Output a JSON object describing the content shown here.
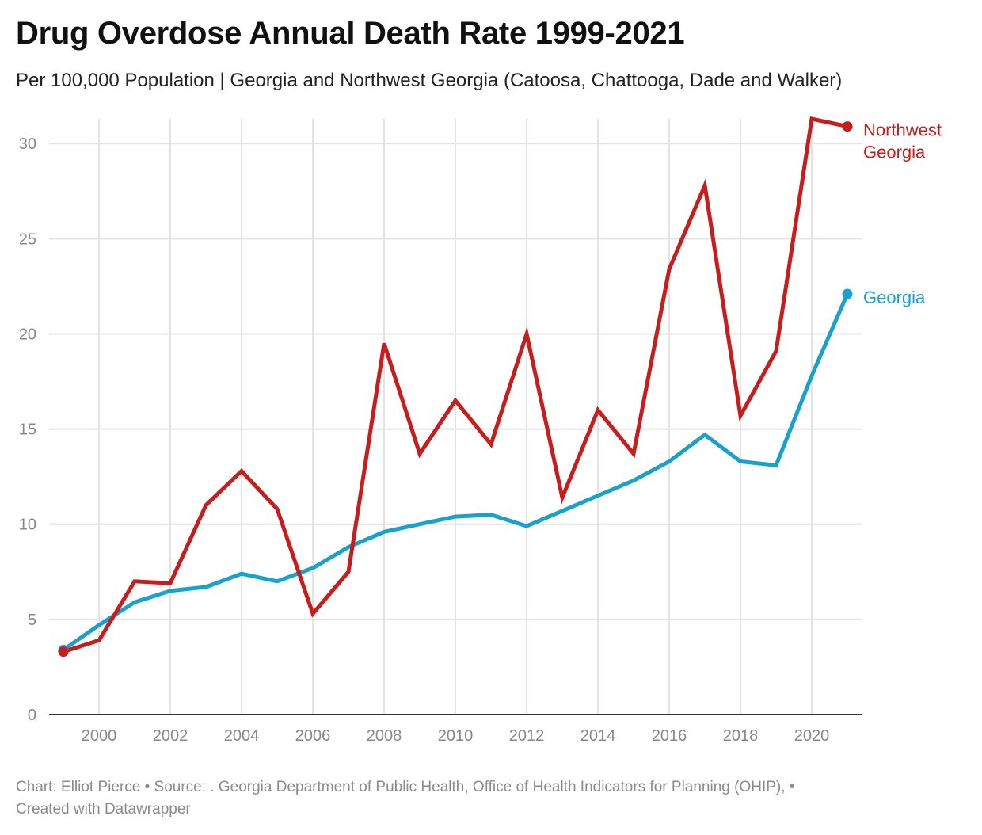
{
  "title": "Drug Overdose Annual Death Rate 1999-2021",
  "subtitle": "Per 100,000 Population | Georgia and Northwest Georgia (Catoosa, Chattooga, Dade and Walker)",
  "footer": {
    "line1": "Chart: Elliot Pierce • Source: . Georgia Department of Public Health, Office of Health Indicators for Planning (OHIP), •",
    "line2": "Created with Datawrapper"
  },
  "chart_data": {
    "type": "line",
    "title": "Drug Overdose Annual Death Rate 1999-2021",
    "subtitle": "Per 100,000 Population | Georgia and Northwest Georgia (Catoosa, Chattooga, Dade and Walker)",
    "x": [
      1999,
      2000,
      2001,
      2002,
      2003,
      2004,
      2005,
      2006,
      2007,
      2008,
      2009,
      2010,
      2011,
      2012,
      2013,
      2014,
      2015,
      2016,
      2017,
      2018,
      2019,
      2020,
      2021
    ],
    "xlim": [
      1998.6,
      2021.4
    ],
    "ylim": [
      0,
      31.3
    ],
    "x_ticks": [
      2000,
      2002,
      2004,
      2006,
      2008,
      2010,
      2012,
      2014,
      2016,
      2018,
      2020
    ],
    "y_ticks": [
      0,
      5,
      10,
      15,
      20,
      25,
      30
    ],
    "grid": true,
    "legend": "direct labels at line ends (right)",
    "series": [
      {
        "name": "Northwest Georgia",
        "label_lines": [
          "Northwest",
          "Georgia"
        ],
        "color": "#c71e1d",
        "values": [
          3.3,
          3.9,
          7.0,
          6.9,
          11.0,
          12.8,
          10.8,
          5.3,
          7.5,
          19.5,
          13.7,
          16.5,
          14.2,
          20.0,
          11.4,
          16.0,
          13.7,
          23.4,
          27.8,
          15.7,
          19.1,
          31.3,
          30.9
        ]
      },
      {
        "name": "Georgia",
        "label_lines": [
          "Georgia"
        ],
        "color": "#18a1cd",
        "values": [
          3.4,
          4.7,
          5.9,
          6.5,
          6.7,
          7.4,
          7.0,
          7.7,
          8.8,
          9.6,
          10.0,
          10.4,
          10.5,
          9.9,
          10.7,
          11.5,
          12.3,
          13.3,
          14.7,
          13.3,
          13.1,
          17.8,
          22.1
        ]
      }
    ]
  }
}
